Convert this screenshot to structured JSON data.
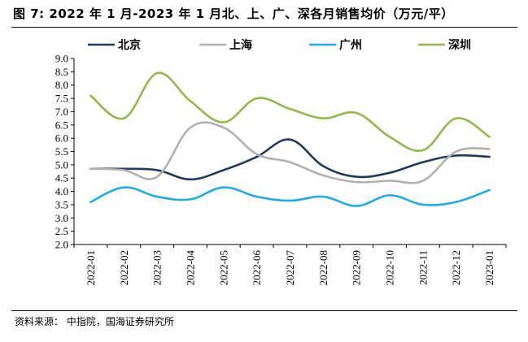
{
  "header": {
    "title": "图 7:  2022 年 1 月-2023 年 1 月北、上、广、深各月销售均价（万元/平）"
  },
  "footer": {
    "source": "资料来源：  中指院，国海证券研究所"
  },
  "chart_data": {
    "type": "line",
    "title": "图 7:  2022 年 1 月-2023 年 1 月北、上、广、深各月销售均价（万元/平）",
    "xlabel": "",
    "ylabel": "",
    "ylim": [
      2.0,
      9.0
    ],
    "yticks": [
      "2.0",
      "2.5",
      "3.0",
      "3.5",
      "4.0",
      "4.5",
      "5.0",
      "5.5",
      "6.0",
      "6.5",
      "7.0",
      "7.5",
      "8.0",
      "8.5",
      "9.0"
    ],
    "categories": [
      "2022-01",
      "2022-02",
      "2022-03",
      "2022-04",
      "2022-05",
      "2022-06",
      "2022-07",
      "2022-08",
      "2022-09",
      "2022-10",
      "2022-11",
      "2022-12",
      "2023-01"
    ],
    "grid": false,
    "legend_position": "top",
    "series": [
      {
        "name": "北京",
        "color": "#1F3B5C",
        "values": [
          4.85,
          4.85,
          4.8,
          4.45,
          4.8,
          5.3,
          5.95,
          4.95,
          4.55,
          4.7,
          5.1,
          5.35,
          5.3
        ]
      },
      {
        "name": "上海",
        "color": "#B0B0B0",
        "values": [
          4.85,
          4.8,
          4.55,
          6.4,
          6.4,
          5.4,
          5.1,
          4.6,
          4.35,
          4.4,
          4.4,
          5.5,
          5.6
        ]
      },
      {
        "name": "广州",
        "color": "#1EAAE6",
        "values": [
          3.6,
          4.15,
          3.8,
          3.7,
          4.15,
          3.8,
          3.65,
          3.8,
          3.45,
          3.85,
          3.5,
          3.6,
          4.05
        ]
      },
      {
        "name": "深圳",
        "color": "#93B84A",
        "values": [
          7.6,
          6.75,
          8.45,
          7.4,
          6.6,
          7.5,
          7.1,
          6.75,
          6.95,
          6.05,
          5.55,
          6.75,
          6.05
        ]
      }
    ]
  }
}
